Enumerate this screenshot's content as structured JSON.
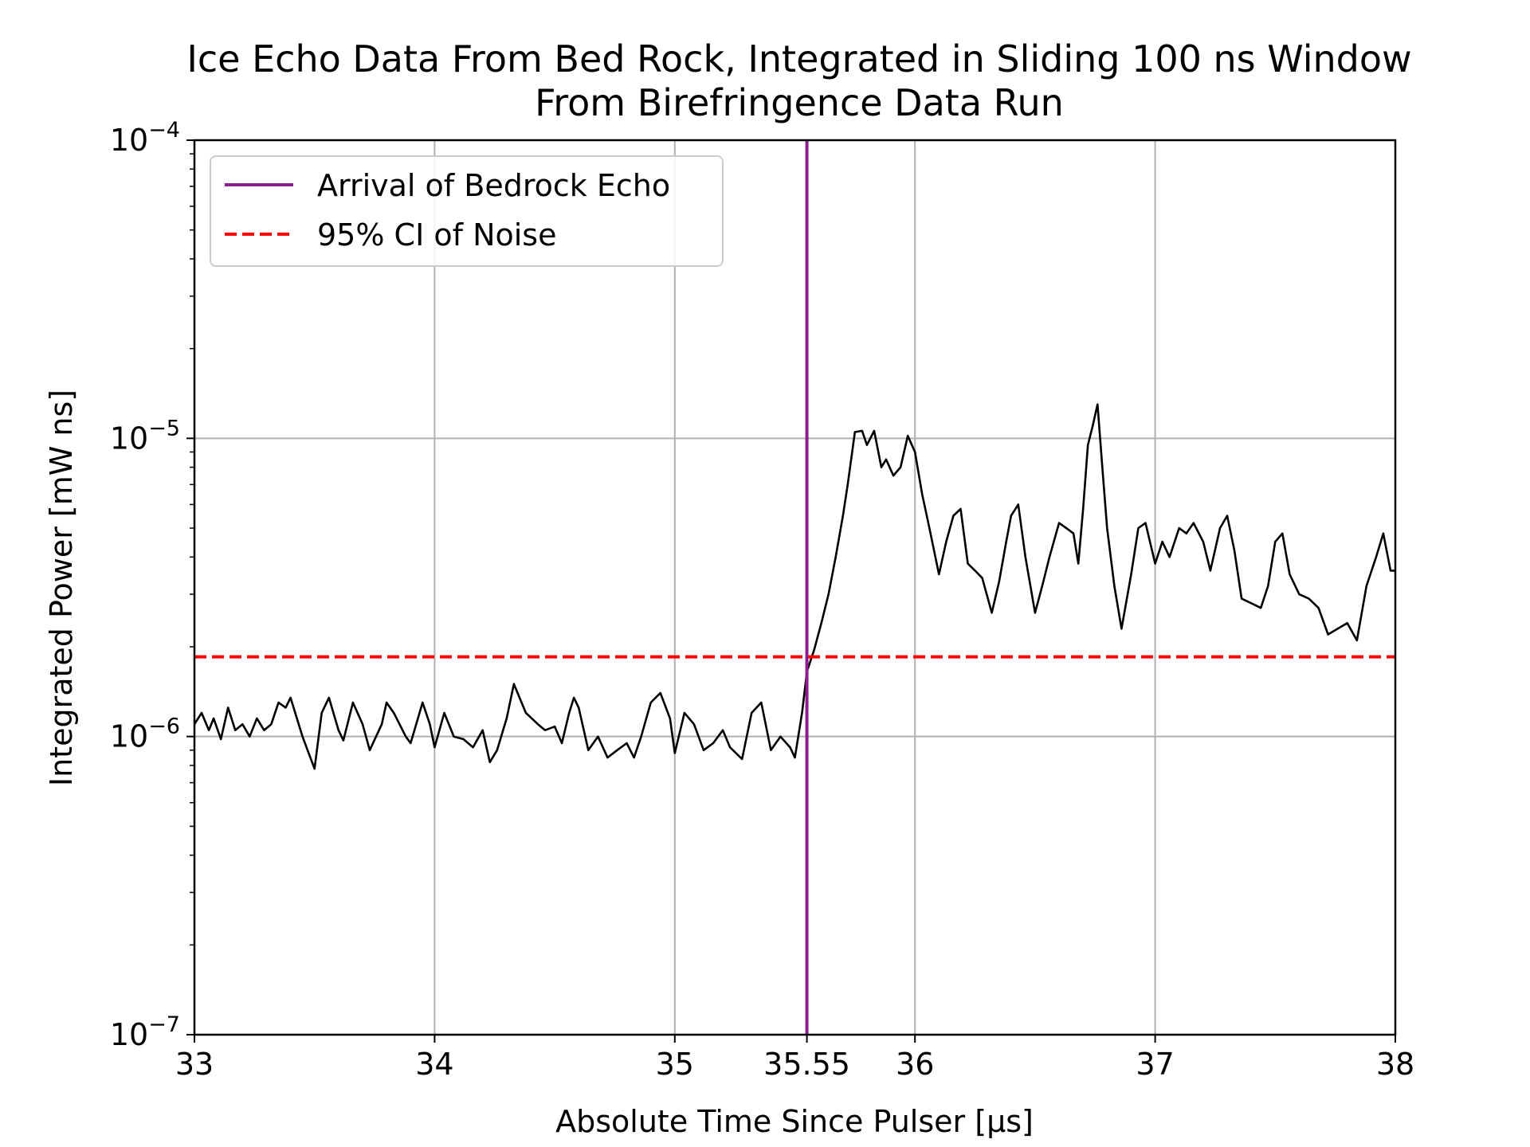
{
  "chart_data": {
    "type": "line",
    "title_lines": [
      "Ice Echo Data From Bed Rock, Integrated in Sliding 100 ns Window",
      "From Birefringence Data Run"
    ],
    "xlabel": "Absolute Time Since Pulser [μs]",
    "ylabel": "Integrated Power [mW ns]",
    "xlim": [
      33,
      38
    ],
    "ylim": [
      1e-07,
      0.0001
    ],
    "yscale": "log",
    "grid": true,
    "legend_position": "top-left",
    "x_ticks": [
      {
        "value": 33,
        "label": "33"
      },
      {
        "value": 34,
        "label": "34"
      },
      {
        "value": 35,
        "label": "35"
      },
      {
        "value": 35.55,
        "label": "35.55"
      },
      {
        "value": 36,
        "label": "36"
      },
      {
        "value": 37,
        "label": "37"
      },
      {
        "value": 38,
        "label": "38"
      }
    ],
    "x_gridlines": [
      33,
      34,
      35,
      36,
      37,
      38
    ],
    "y_ticks": [
      {
        "value": 1e-07,
        "base": "10",
        "exp": "−7"
      },
      {
        "value": 1e-06,
        "base": "10",
        "exp": "−6"
      },
      {
        "value": 1e-05,
        "base": "10",
        "exp": "−5"
      },
      {
        "value": 0.0001,
        "base": "10",
        "exp": "−4"
      }
    ],
    "series": [
      {
        "type": "line",
        "color": "#000000",
        "x": [
          33.0,
          33.03,
          33.06,
          33.08,
          33.11,
          33.14,
          33.17,
          33.2,
          33.23,
          33.26,
          33.29,
          33.32,
          33.35,
          33.38,
          33.4,
          33.45,
          33.5,
          33.53,
          33.56,
          33.6,
          33.62,
          33.66,
          33.7,
          33.73,
          33.78,
          33.8,
          33.83,
          33.88,
          33.9,
          33.95,
          33.98,
          34.0,
          34.04,
          34.08,
          34.12,
          34.16,
          34.2,
          34.23,
          34.26,
          34.3,
          34.33,
          34.38,
          34.43,
          34.46,
          34.5,
          34.53,
          34.56,
          34.58,
          34.6,
          34.64,
          34.68,
          34.72,
          34.76,
          34.8,
          34.83,
          34.86,
          34.9,
          34.94,
          34.98,
          35.0,
          35.04,
          35.08,
          35.12,
          35.16,
          35.2,
          35.23,
          35.28,
          35.32,
          35.36,
          35.4,
          35.44,
          35.48,
          35.5,
          35.53,
          35.55,
          35.58,
          35.61,
          35.64,
          35.67,
          35.7,
          35.72,
          35.75,
          35.78,
          35.8,
          35.83,
          35.86,
          35.88,
          35.91,
          35.94,
          35.97,
          36.0,
          36.03,
          36.06,
          36.1,
          36.13,
          36.16,
          36.19,
          36.22,
          36.25,
          36.28,
          36.32,
          36.35,
          36.38,
          36.4,
          36.43,
          36.46,
          36.5,
          36.53,
          36.56,
          36.6,
          36.63,
          36.66,
          36.68,
          36.7,
          36.72,
          36.74,
          36.76,
          36.78,
          36.8,
          36.83,
          36.86,
          36.9,
          36.93,
          36.96,
          37.0,
          37.03,
          37.06,
          37.1,
          37.13,
          37.16,
          37.2,
          37.23,
          37.27,
          37.3,
          37.33,
          37.36,
          37.4,
          37.44,
          37.47,
          37.5,
          37.53,
          37.56,
          37.6,
          37.64,
          37.68,
          37.72,
          37.76,
          37.8,
          37.84,
          37.88,
          37.92,
          37.95,
          37.98,
          38.0
        ],
        "y": [
          1.1e-06,
          1.2e-06,
          1.05e-06,
          1.15e-06,
          9.8e-07,
          1.25e-06,
          1.05e-06,
          1.1e-06,
          1e-06,
          1.15e-06,
          1.05e-06,
          1.1e-06,
          1.3e-06,
          1.25e-06,
          1.35e-06,
          1e-06,
          7.8e-07,
          1.2e-06,
          1.35e-06,
          1.05e-06,
          9.7e-07,
          1.3e-06,
          1.1e-06,
          9e-07,
          1.1e-06,
          1.3e-06,
          1.2e-06,
          1e-06,
          9.5e-07,
          1.3e-06,
          1.1e-06,
          9.2e-07,
          1.2e-06,
          1e-06,
          9.8e-07,
          9.2e-07,
          1.05e-06,
          8.2e-07,
          9e-07,
          1.15e-06,
          1.5e-06,
          1.2e-06,
          1.1e-06,
          1.05e-06,
          1.08e-06,
          9.5e-07,
          1.2e-06,
          1.35e-06,
          1.25e-06,
          9e-07,
          1e-06,
          8.5e-07,
          9e-07,
          9.5e-07,
          8.5e-07,
          1e-06,
          1.3e-06,
          1.4e-06,
          1.15e-06,
          8.8e-07,
          1.2e-06,
          1.1e-06,
          9e-07,
          9.5e-07,
          1.05e-06,
          9.2e-07,
          8.4e-07,
          1.2e-06,
          1.3e-06,
          9e-07,
          1e-06,
          9.2e-07,
          8.5e-07,
          1.2e-06,
          1.65e-06,
          1.95e-06,
          2.4e-06,
          3e-06,
          4e-06,
          5.5e-06,
          7e-06,
          1.05e-05,
          1.06e-05,
          9.5e-06,
          1.06e-05,
          8e-06,
          8.5e-06,
          7.5e-06,
          8e-06,
          1.02e-05,
          9e-06,
          6.5e-06,
          5e-06,
          3.5e-06,
          4.5e-06,
          5.5e-06,
          5.8e-06,
          3.8e-06,
          3.6e-06,
          3.4e-06,
          2.6e-06,
          3.3e-06,
          4.5e-06,
          5.5e-06,
          6e-06,
          4e-06,
          2.6e-06,
          3.2e-06,
          4e-06,
          5.2e-06,
          5e-06,
          4.8e-06,
          3.8e-06,
          5.8e-06,
          9.5e-06,
          1.1e-05,
          1.3e-05,
          8e-06,
          5e-06,
          3.2e-06,
          2.3e-06,
          3.5e-06,
          5e-06,
          5.2e-06,
          3.8e-06,
          4.5e-06,
          4e-06,
          5e-06,
          4.8e-06,
          5.2e-06,
          4.5e-06,
          3.6e-06,
          5e-06,
          5.5e-06,
          4.2e-06,
          2.9e-06,
          2.8e-06,
          2.7e-06,
          3.2e-06,
          4.5e-06,
          4.8e-06,
          3.5e-06,
          3e-06,
          2.9e-06,
          2.7e-06,
          2.2e-06,
          2.3e-06,
          2.4e-06,
          2.1e-06,
          3.2e-06,
          4e-06,
          4.8e-06,
          3.6e-06,
          3.6e-06
        ]
      },
      {
        "name": "Arrival of Bedrock Echo",
        "type": "vline",
        "x": 35.55,
        "color": "#8b1e8f",
        "style": "solid"
      },
      {
        "name": "95% CI of Noise",
        "type": "hline",
        "y": 1.85e-06,
        "color": "#ff0000",
        "style": "dashed"
      }
    ]
  }
}
